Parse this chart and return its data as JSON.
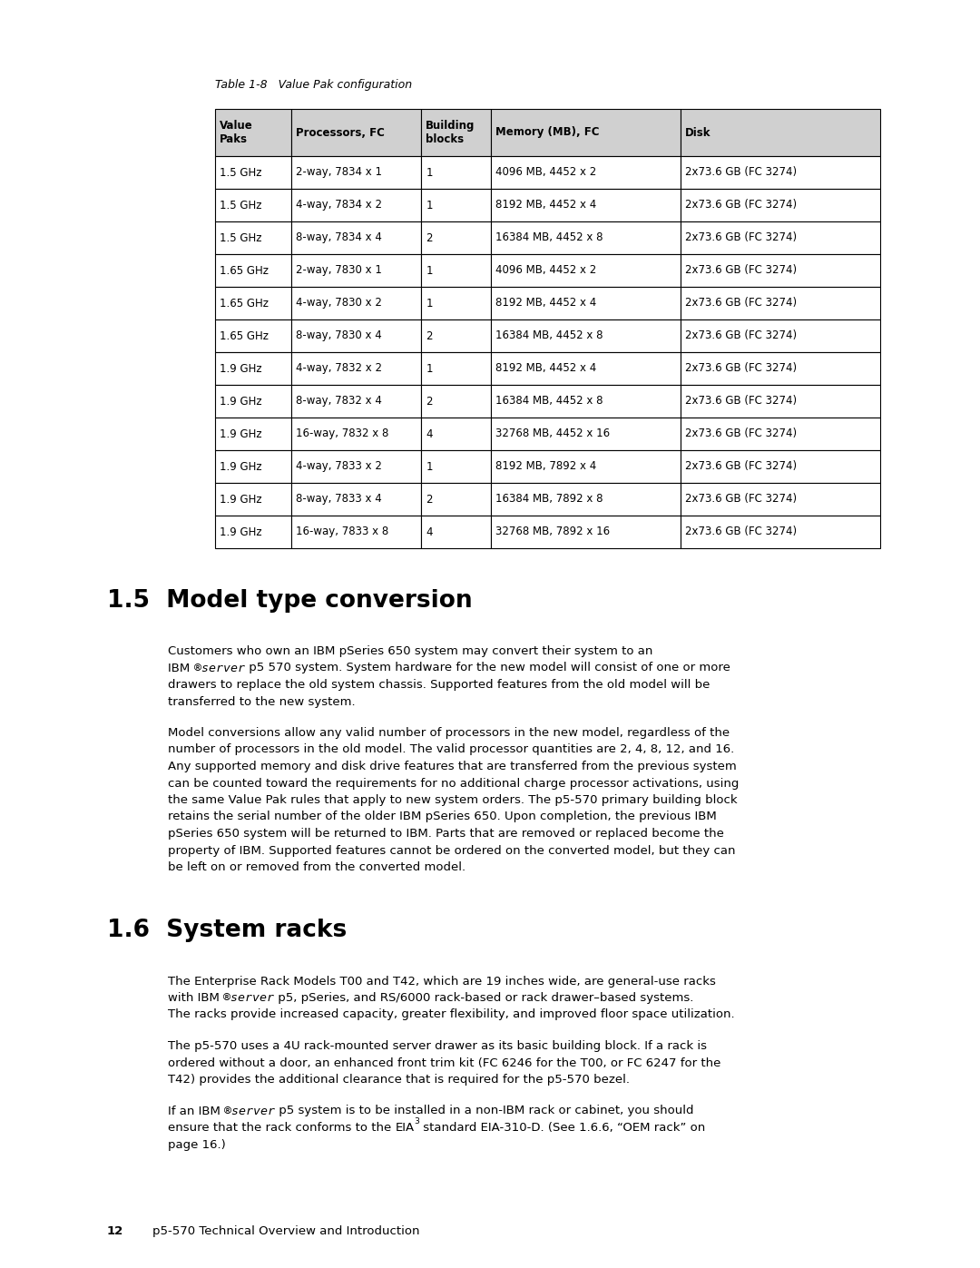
{
  "table_caption": "Table 1-8   Value Pak configuration",
  "table_headers": [
    "Value\nPaks",
    "Processors, FC",
    "Building\nblocks",
    "Memory (MB), FC",
    "Disk"
  ],
  "table_rows": [
    [
      "1.5 GHz",
      "2-way, 7834 x 1",
      "1",
      "4096 MB, 4452 x 2",
      "2x73.6 GB (FC 3274)"
    ],
    [
      "1.5 GHz",
      "4-way, 7834 x 2",
      "1",
      "8192 MB, 4452 x 4",
      "2x73.6 GB (FC 3274)"
    ],
    [
      "1.5 GHz",
      "8-way, 7834 x 4",
      "2",
      "16384 MB, 4452 x 8",
      "2x73.6 GB (FC 3274)"
    ],
    [
      "1.65 GHz",
      "2-way, 7830 x 1",
      "1",
      "4096 MB, 4452 x 2",
      "2x73.6 GB (FC 3274)"
    ],
    [
      "1.65 GHz",
      "4-way, 7830 x 2",
      "1",
      "8192 MB, 4452 x 4",
      "2x73.6 GB (FC 3274)"
    ],
    [
      "1.65 GHz",
      "8-way, 7830 x 4",
      "2",
      "16384 MB, 4452 x 8",
      "2x73.6 GB (FC 3274)"
    ],
    [
      "1.9 GHz",
      "4-way, 7832 x 2",
      "1",
      "8192 MB, 4452 x 4",
      "2x73.6 GB (FC 3274)"
    ],
    [
      "1.9 GHz",
      "8-way, 7832 x 4",
      "2",
      "16384 MB, 4452 x 8",
      "2x73.6 GB (FC 3274)"
    ],
    [
      "1.9 GHz",
      "16-way, 7832 x 8",
      "4",
      "32768 MB, 4452 x 16",
      "2x73.6 GB (FC 3274)"
    ],
    [
      "1.9 GHz",
      "4-way, 7833 x 2",
      "1",
      "8192 MB, 7892 x 4",
      "2x73.6 GB (FC 3274)"
    ],
    [
      "1.9 GHz",
      "8-way, 7833 x 4",
      "2",
      "16384 MB, 7892 x 8",
      "2x73.6 GB (FC 3274)"
    ],
    [
      "1.9 GHz",
      "16-way, 7833 x 8",
      "4",
      "32768 MB, 7892 x 16",
      "2x73.6 GB (FC 3274)"
    ]
  ],
  "header_bg": "#d0d0d0",
  "section1_title": "1.5  Model type conversion",
  "section1_para1_lines": [
    "Customers who own an IBM pSeries 650 system may convert their system to an",
    "IBM ®server p5 570 system. System hardware for the new model will consist of one or more",
    "drawers to replace the old system chassis. Supported features from the old model will be",
    "transferred to the new system."
  ],
  "section1_para2_lines": [
    "Model conversions allow any valid number of processors in the new model, regardless of the",
    "number of processors in the old model. The valid processor quantities are 2, 4, 8, 12, and 16.",
    "Any supported memory and disk drive features that are transferred from the previous system",
    "can be counted toward the requirements for no additional charge processor activations, using",
    "the same Value Pak rules that apply to new system orders. The p5-570 primary building block",
    "retains the serial number of the older IBM pSeries 650. Upon completion, the previous IBM",
    "pSeries 650 system will be returned to IBM. Parts that are removed or replaced become the",
    "property of IBM. Supported features cannot be ordered on the converted model, but they can",
    "be left on or removed from the converted model."
  ],
  "section2_title": "1.6  System racks",
  "section2_para1_lines": [
    "The Enterprise Rack Models T00 and T42, which are 19 inches wide, are general-use racks",
    "with IBM ®server p5, pSeries, and RS/6000 rack-based or rack drawer–based systems.",
    "The racks provide increased capacity, greater flexibility, and improved floor space utilization."
  ],
  "section2_para2_lines": [
    "The p5-570 uses a 4U rack-mounted server drawer as its basic building block. If a rack is",
    "ordered without a door, an enhanced front trim kit (FC 6246 for the T00, or FC 6247 for the",
    "T42) provides the additional clearance that is required for the p5-570 bezel."
  ],
  "section2_para3_lines": [
    "If an IBM ®server p5 system is to be installed in a non-IBM rack or cabinet, you should",
    "ensure that the rack conforms to the EIA^3 standard EIA-310-D. (See 1.6.6, “OEM rack” on",
    "page 16.)"
  ],
  "footer_num": "12",
  "footer_text": "p5-570 Technical Overview and Introduction",
  "background_color": "#ffffff",
  "text_color": "#000000",
  "border_color": "#000000"
}
